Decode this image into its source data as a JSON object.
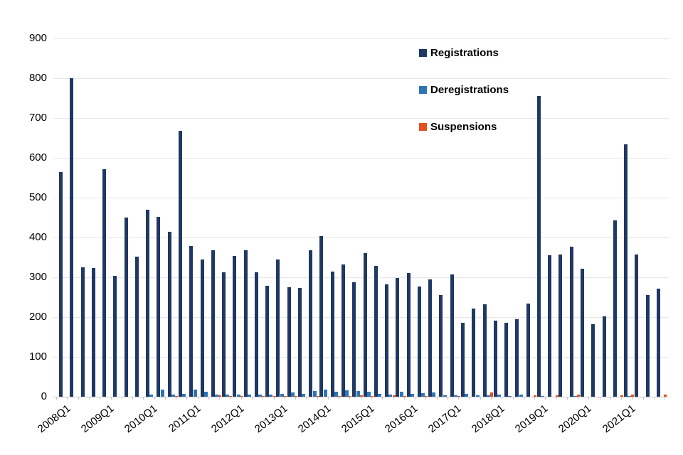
{
  "chart_data": {
    "type": "bar",
    "title": "",
    "xlabel": "",
    "ylabel": "",
    "ylim": [
      0,
      900
    ],
    "y_ticks": [
      0,
      100,
      200,
      300,
      400,
      500,
      600,
      700,
      800,
      900
    ],
    "grid": "horizontal",
    "legend_position": "inside-top-right",
    "categories": [
      "2008Q1",
      "2008Q2",
      "2008Q3",
      "2008Q4",
      "2009Q1",
      "2009Q2",
      "2009Q3",
      "2009Q4",
      "2010Q1",
      "2010Q2",
      "2010Q3",
      "2010Q4",
      "2011Q1",
      "2011Q2",
      "2011Q3",
      "2011Q4",
      "2012Q1",
      "2012Q2",
      "2012Q3",
      "2012Q4",
      "2013Q1",
      "2013Q2",
      "2013Q3",
      "2013Q4",
      "2014Q1",
      "2014Q2",
      "2014Q3",
      "2014Q4",
      "2015Q1",
      "2015Q2",
      "2015Q3",
      "2015Q4",
      "2016Q1",
      "2016Q2",
      "2016Q3",
      "2016Q4",
      "2017Q1",
      "2017Q2",
      "2017Q3",
      "2017Q4",
      "2018Q1",
      "2018Q2",
      "2018Q3",
      "2018Q4",
      "2019Q1",
      "2019Q2",
      "2019Q3",
      "2019Q4",
      "2020Q1",
      "2020Q2",
      "2020Q3",
      "2020Q4",
      "2021Q1",
      "2021Q2",
      "2021Q3",
      "2021Q4"
    ],
    "x_tick_labels": [
      "2008Q1",
      "2009Q1",
      "2010Q1",
      "2011Q1",
      "2012Q1",
      "2013Q1",
      "2014Q1",
      "2015Q1",
      "2016Q1",
      "2017Q1",
      "2018Q1",
      "2019Q1",
      "2020Q1",
      "2021Q1"
    ],
    "series": [
      {
        "name": "Registrations",
        "color": "#1F3864",
        "values": [
          565,
          800,
          325,
          324,
          572,
          303,
          450,
          351,
          470,
          452,
          415,
          668,
          379,
          344,
          367,
          313,
          353,
          367,
          312,
          279,
          345,
          275,
          273,
          367,
          404,
          315,
          333,
          287,
          360,
          328,
          282,
          299,
          311,
          277,
          295,
          255,
          307,
          185,
          222,
          232,
          191,
          185,
          195,
          234,
          755,
          355,
          357,
          377,
          321,
          182,
          202,
          443,
          634,
          357,
          255,
          272
        ]
      },
      {
        "name": "Deregistrations",
        "color": "#2E75B6",
        "values": [
          0,
          0,
          0,
          0,
          0,
          0,
          0,
          0,
          5,
          18,
          5,
          7,
          17,
          13,
          6,
          6,
          5,
          5,
          5,
          6,
          8,
          10,
          7,
          15,
          17,
          12,
          16,
          15,
          13,
          7,
          6,
          12,
          8,
          9,
          10,
          3,
          4,
          8,
          3,
          3,
          5,
          2,
          6,
          0,
          2,
          0,
          0,
          2,
          0,
          0,
          0,
          0,
          2,
          0,
          0,
          0
        ]
      },
      {
        "name": "Suspensions",
        "color": "#E2511D",
        "values": [
          0,
          0,
          0,
          0,
          0,
          0,
          0,
          0,
          0,
          0,
          2,
          0,
          0,
          0,
          3,
          2,
          2,
          0,
          2,
          2,
          2,
          2,
          0,
          2,
          0,
          2,
          2,
          3,
          2,
          0,
          3,
          2,
          0,
          2,
          0,
          0,
          2,
          0,
          0,
          11,
          0,
          0,
          0,
          3,
          0,
          3,
          0,
          6,
          0,
          0,
          0,
          3,
          5,
          0,
          0,
          5
        ]
      }
    ],
    "colors": {
      "background": "#FFFFFF",
      "gridline": "#E7E7E7",
      "axis": "#C3C3C3",
      "text": "#000000"
    }
  }
}
